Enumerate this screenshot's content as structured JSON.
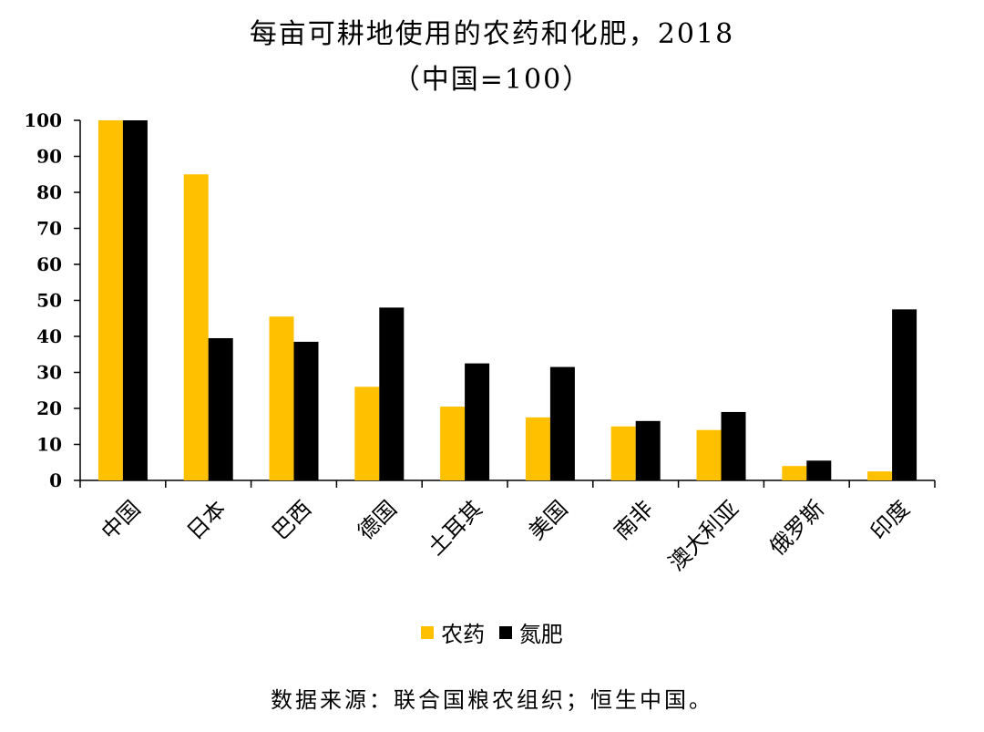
{
  "chart_data": {
    "type": "bar",
    "title": "每亩可耕地使用的农药和化肥，2018",
    "subtitle": "（中国=100）",
    "categories": [
      "中国",
      "日本",
      "巴西",
      "德国",
      "土耳其",
      "美国",
      "南非",
      "澳大利亚",
      "俄罗斯",
      "印度"
    ],
    "series": [
      {
        "name": "农药",
        "color": "#FFC000",
        "values": [
          100,
          85,
          45.5,
          26,
          20.5,
          17.5,
          15,
          14,
          4,
          2.5
        ]
      },
      {
        "name": "氮肥",
        "color": "#000000",
        "values": [
          100,
          39.5,
          38.5,
          48,
          32.5,
          31.5,
          16.5,
          19,
          5.5,
          47.5
        ]
      }
    ],
    "ylim": [
      0,
      100
    ],
    "yticks": [
      "0",
      "10",
      "20",
      "30",
      "40",
      "50",
      "60",
      "70",
      "80",
      "90",
      "100"
    ],
    "grid": false,
    "legend": "bottom"
  },
  "source": "数据来源：联合国粮农组织；恒生中国。"
}
